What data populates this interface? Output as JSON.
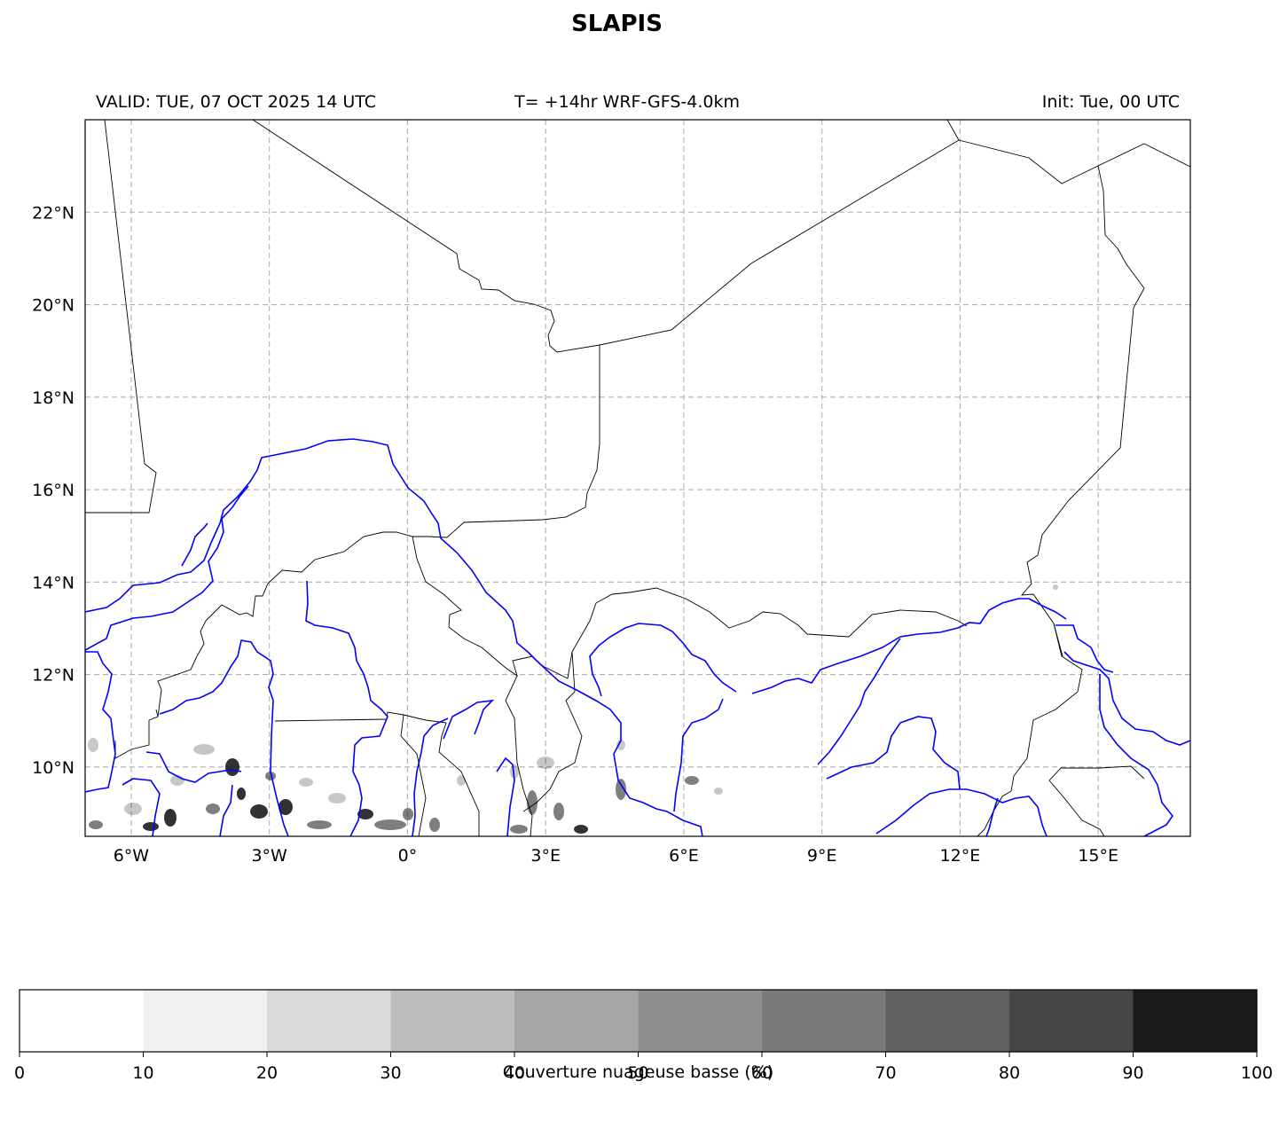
{
  "title": "SLAPIS",
  "header": {
    "valid": "VALID: TUE, 07 OCT 2025 14 UTC",
    "model": "T= +14hr WRF-GFS-4.0km",
    "init": "Init: Tue, 00 UTC"
  },
  "map": {
    "extent": {
      "lon": [
        -7.0,
        17.0
      ],
      "lat": [
        8.5,
        24.0
      ]
    },
    "lon_ticks": [
      {
        "value": -6,
        "label": "6°W"
      },
      {
        "value": -3,
        "label": "3°W"
      },
      {
        "value": 0,
        "label": "0°"
      },
      {
        "value": 3,
        "label": "3°E"
      },
      {
        "value": 6,
        "label": "6°E"
      },
      {
        "value": 9,
        "label": "9°E"
      },
      {
        "value": 12,
        "label": "12°E"
      },
      {
        "value": 15,
        "label": "15°E"
      }
    ],
    "lat_ticks": [
      {
        "value": 10,
        "label": "10°N"
      },
      {
        "value": 12,
        "label": "12°N"
      },
      {
        "value": 14,
        "label": "14°N"
      },
      {
        "value": 16,
        "label": "16°N"
      },
      {
        "value": 18,
        "label": "18°N"
      },
      {
        "value": 20,
        "label": "20°N"
      },
      {
        "value": 22,
        "label": "22°N"
      }
    ],
    "gridlines": "dashed",
    "border_color": "#000000",
    "contour_color": "#0000ff"
  },
  "colorbar": {
    "label": "Couverture nuageuse basse (%)",
    "ticks": [
      "0",
      "10",
      "20",
      "30",
      "40",
      "50",
      "60",
      "70",
      "80",
      "90",
      "100"
    ],
    "colors": [
      "#ffffff",
      "#f0f0f0",
      "#d9d9d9",
      "#bdbdbd",
      "#a6a6a6",
      "#8e8e8e",
      "#7a7a7a",
      "#606060",
      "#464646",
      "#1a1a1a"
    ]
  }
}
